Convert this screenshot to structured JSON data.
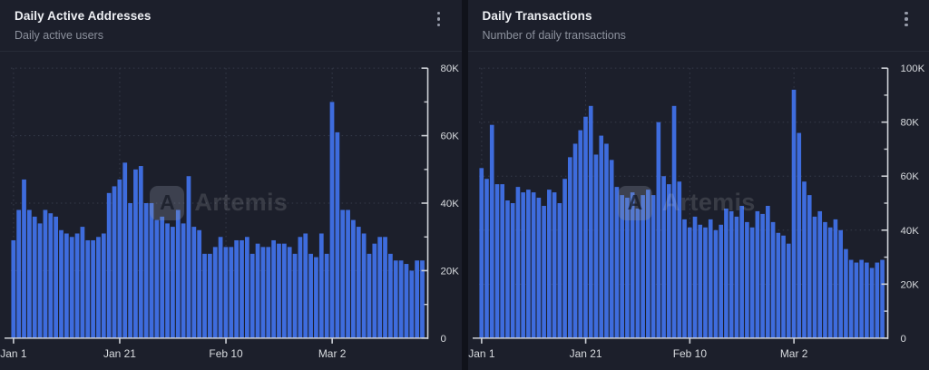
{
  "theme": {
    "page_bg": "#10121a",
    "card_bg": "#1c1f2b",
    "divider": "#272b38",
    "title_color": "#eef0f4",
    "subtitle_color": "#8c919d",
    "axis_color": "#ced1d7",
    "label_color": "#d7dade",
    "grid_color": "#363b4a",
    "bar_color": "#3e6cdd",
    "menu_icon_color": "#979caa",
    "watermark_color": "rgba(255,255,255,0.13)"
  },
  "watermark": {
    "text": "Artemis",
    "logo_glyph": "A"
  },
  "cards": [
    {
      "title": "Daily Active Addresses",
      "subtitle": "Daily active users"
    },
    {
      "title": "Daily Transactions",
      "subtitle": "Number of daily transactions"
    }
  ],
  "chart_data": [
    {
      "type": "bar",
      "title": "Daily Active Addresses",
      "xlabel": "",
      "ylabel": "",
      "ylim": [
        0,
        80000
      ],
      "grid": "dashed",
      "legend": "none",
      "axis_side": "right",
      "y_ticks": [
        {
          "value": 0,
          "label": "0"
        },
        {
          "value": 20000,
          "label": "20K"
        },
        {
          "value": 40000,
          "label": "40K"
        },
        {
          "value": 60000,
          "label": "60K"
        },
        {
          "value": 80000,
          "label": "80K"
        }
      ],
      "x_ticks": [
        {
          "day_index": 0,
          "label": "Jan 1"
        },
        {
          "day_index": 20,
          "label": "Jan 21"
        },
        {
          "day_index": 40,
          "label": "Feb 10"
        },
        {
          "day_index": 60,
          "label": "Mar 2"
        }
      ],
      "values": [
        29000,
        38000,
        47000,
        38000,
        36000,
        34000,
        38000,
        37000,
        36000,
        32000,
        31000,
        30000,
        31000,
        33000,
        29000,
        29000,
        30000,
        31000,
        43000,
        45000,
        47000,
        52000,
        40000,
        50000,
        51000,
        40000,
        40000,
        35000,
        36000,
        34000,
        33000,
        38000,
        34000,
        48000,
        33000,
        32000,
        25000,
        25000,
        27000,
        30000,
        27000,
        27000,
        29000,
        29000,
        30000,
        25000,
        28000,
        27000,
        27000,
        29000,
        28000,
        28000,
        27000,
        25000,
        30000,
        31000,
        25000,
        24000,
        31000,
        25000,
        70000,
        61000,
        38000,
        38000,
        35000,
        33000,
        31000,
        25000,
        28000,
        30000,
        30000,
        25000,
        23000,
        23000,
        22000,
        20000,
        23000,
        23000
      ]
    },
    {
      "type": "bar",
      "title": "Daily Transactions",
      "xlabel": "",
      "ylabel": "",
      "ylim": [
        0,
        100000
      ],
      "grid": "dashed",
      "legend": "none",
      "axis_side": "right",
      "y_ticks": [
        {
          "value": 0,
          "label": "0"
        },
        {
          "value": 20000,
          "label": "20K"
        },
        {
          "value": 40000,
          "label": "40K"
        },
        {
          "value": 60000,
          "label": "60K"
        },
        {
          "value": 80000,
          "label": "80K"
        },
        {
          "value": 100000,
          "label": "100K"
        }
      ],
      "x_ticks": [
        {
          "day_index": 0,
          "label": "Jan 1"
        },
        {
          "day_index": 20,
          "label": "Jan 21"
        },
        {
          "day_index": 40,
          "label": "Feb 10"
        },
        {
          "day_index": 60,
          "label": "Mar 2"
        }
      ],
      "values": [
        63000,
        59000,
        79000,
        57000,
        57000,
        51000,
        50000,
        56000,
        54000,
        55000,
        54000,
        52000,
        49000,
        55000,
        54000,
        50000,
        59000,
        67000,
        72000,
        77000,
        82000,
        86000,
        68000,
        75000,
        72000,
        66000,
        56000,
        53000,
        52000,
        54000,
        48000,
        53000,
        55000,
        53000,
        80000,
        60000,
        57000,
        86000,
        58000,
        44000,
        41000,
        45000,
        42000,
        41000,
        44000,
        40000,
        42000,
        48000,
        47000,
        45000,
        49000,
        43000,
        41000,
        47000,
        46000,
        49000,
        43000,
        39000,
        38000,
        35000,
        92000,
        76000,
        58000,
        53000,
        45000,
        47000,
        43000,
        41000,
        44000,
        40000,
        33000,
        29000,
        28000,
        29000,
        28000,
        26000,
        28000,
        29000
      ]
    }
  ]
}
